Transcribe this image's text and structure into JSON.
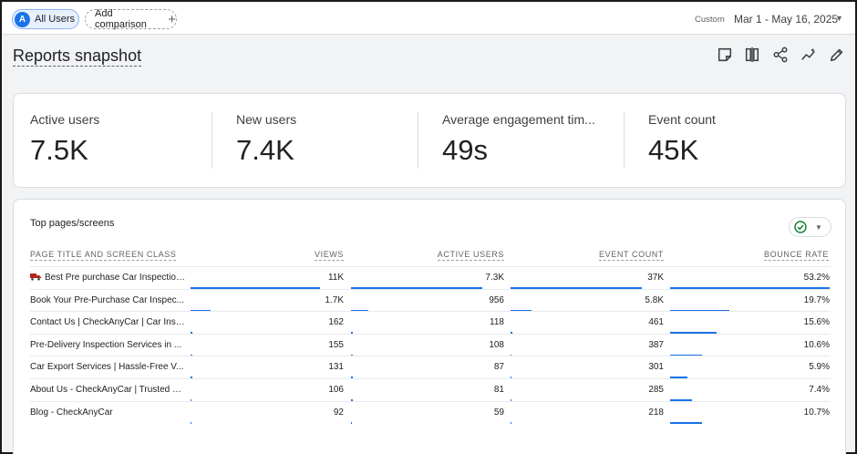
{
  "topbar": {
    "user_chip_avatar": "A",
    "user_chip_label": "All Users",
    "add_comparison_label": "Add comparison",
    "add_icon": "+",
    "date_type": "Custom",
    "date_range": "Mar 1 - May 16, 2025"
  },
  "header": {
    "title": "Reports snapshot",
    "icons": [
      "notes-icon",
      "compare-icon",
      "share-icon",
      "insights-icon",
      "edit-icon"
    ]
  },
  "metrics": [
    {
      "label": "Active users",
      "value": "7.5K"
    },
    {
      "label": "New users",
      "value": "7.4K"
    },
    {
      "label": "Average engagement tim...",
      "value": "49s"
    },
    {
      "label": "Event count",
      "value": "45K"
    }
  ],
  "table": {
    "title": "Top pages/screens",
    "columns": [
      "PAGE TITLE AND SCREEN CLASS",
      "VIEWS",
      "ACTIVE USERS",
      "EVENT COUNT",
      "BOUNCE RATE"
    ],
    "rows": [
      {
        "name": "Best Pre purchase Car Inspection...",
        "has_icon": true,
        "views": "11K",
        "active_users": "7.3K",
        "event_count": "37K",
        "bounce_rate": "53.2%",
        "fractions": [
          1.0,
          1.0,
          1.0,
          1.0
        ]
      },
      {
        "name": "Book Your Pre-Purchase Car Inspec...",
        "has_icon": false,
        "views": "1.7K",
        "active_users": "956",
        "event_count": "5.8K",
        "bounce_rate": "19.7%",
        "fractions": [
          0.155,
          0.131,
          0.157,
          0.37
        ]
      },
      {
        "name": "Contact Us | CheckAnyCar | Car Insp...",
        "has_icon": false,
        "views": "162",
        "active_users": "118",
        "event_count": "461",
        "bounce_rate": "15.6%",
        "fractions": [
          0.015,
          0.016,
          0.012,
          0.293
        ]
      },
      {
        "name": "Pre-Delivery Inspection Services in ...",
        "has_icon": false,
        "views": "155",
        "active_users": "108",
        "event_count": "387",
        "bounce_rate": "10.6%",
        "fractions": [
          0.014,
          0.015,
          0.01,
          0.199
        ]
      },
      {
        "name": "Car Export Services | Hassle-Free V...",
        "has_icon": false,
        "views": "131",
        "active_users": "87",
        "event_count": "301",
        "bounce_rate": "5.9%",
        "fractions": [
          0.012,
          0.012,
          0.008,
          0.111
        ]
      },
      {
        "name": "About Us - CheckAnyCar | Trusted V...",
        "has_icon": false,
        "views": "106",
        "active_users": "81",
        "event_count": "285",
        "bounce_rate": "7.4%",
        "fractions": [
          0.01,
          0.011,
          0.008,
          0.139
        ]
      },
      {
        "name": "Blog - CheckAnyCar",
        "has_icon": false,
        "views": "92",
        "active_users": "59",
        "event_count": "218",
        "bounce_rate": "10.7%",
        "fractions": [
          0.008,
          0.008,
          0.006,
          0.201
        ]
      }
    ]
  },
  "colors": {
    "accent": "#1a73e8",
    "chip_bg": "#e8f0fe",
    "check_green": "#188038"
  }
}
